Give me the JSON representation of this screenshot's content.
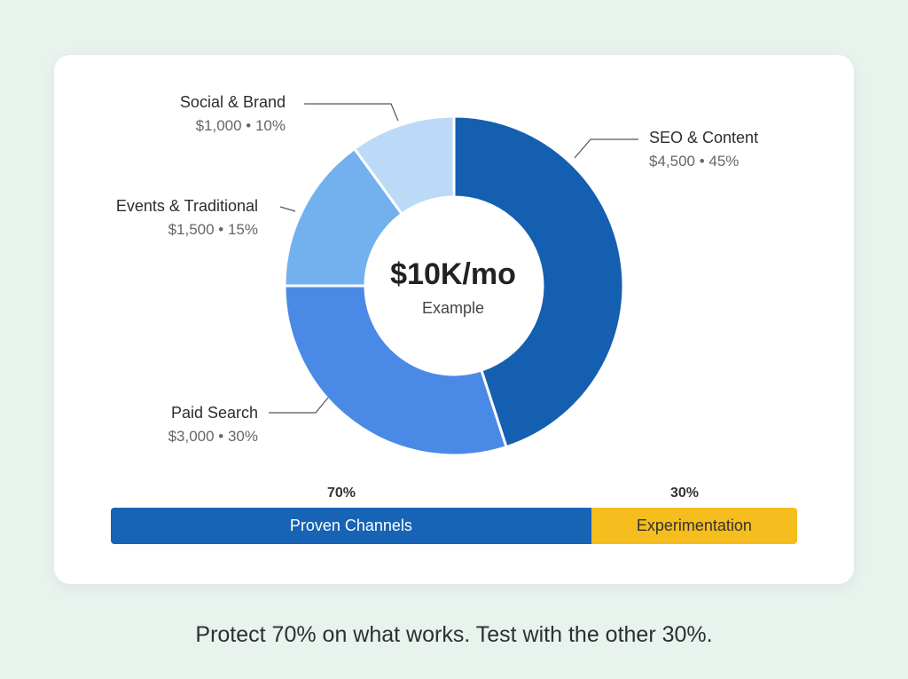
{
  "chart_data": {
    "type": "pie",
    "center": {
      "title": "$10K/mo",
      "subtitle": "Example"
    },
    "slices": [
      {
        "name": "SEO & Content",
        "amount": 4500,
        "percent": 45,
        "amount_label": "$4,500 • 45%",
        "color": "#145fb0"
      },
      {
        "name": "Paid Search",
        "amount": 3000,
        "percent": 30,
        "amount_label": "$3,000 • 30%",
        "color": "#4a8ae6"
      },
      {
        "name": "Events & Traditional",
        "amount": 1500,
        "percent": 15,
        "amount_label": "$1,500 • 15%",
        "color": "#72b1ed"
      },
      {
        "name": "Social & Brand",
        "amount": 1000,
        "percent": 10,
        "amount_label": "$1,000 • 10%",
        "color": "#bcdaf7"
      }
    ]
  },
  "split_bar": {
    "segments": [
      {
        "label": "Proven Channels",
        "percent": 70,
        "percent_label": "70%",
        "color": "#1763b5"
      },
      {
        "label": "Experimentation",
        "percent": 30,
        "percent_label": "30%",
        "color": "#f5bd1d"
      }
    ]
  },
  "footer": {
    "text": "Protect 70% on what works. Test with the other 30%."
  }
}
